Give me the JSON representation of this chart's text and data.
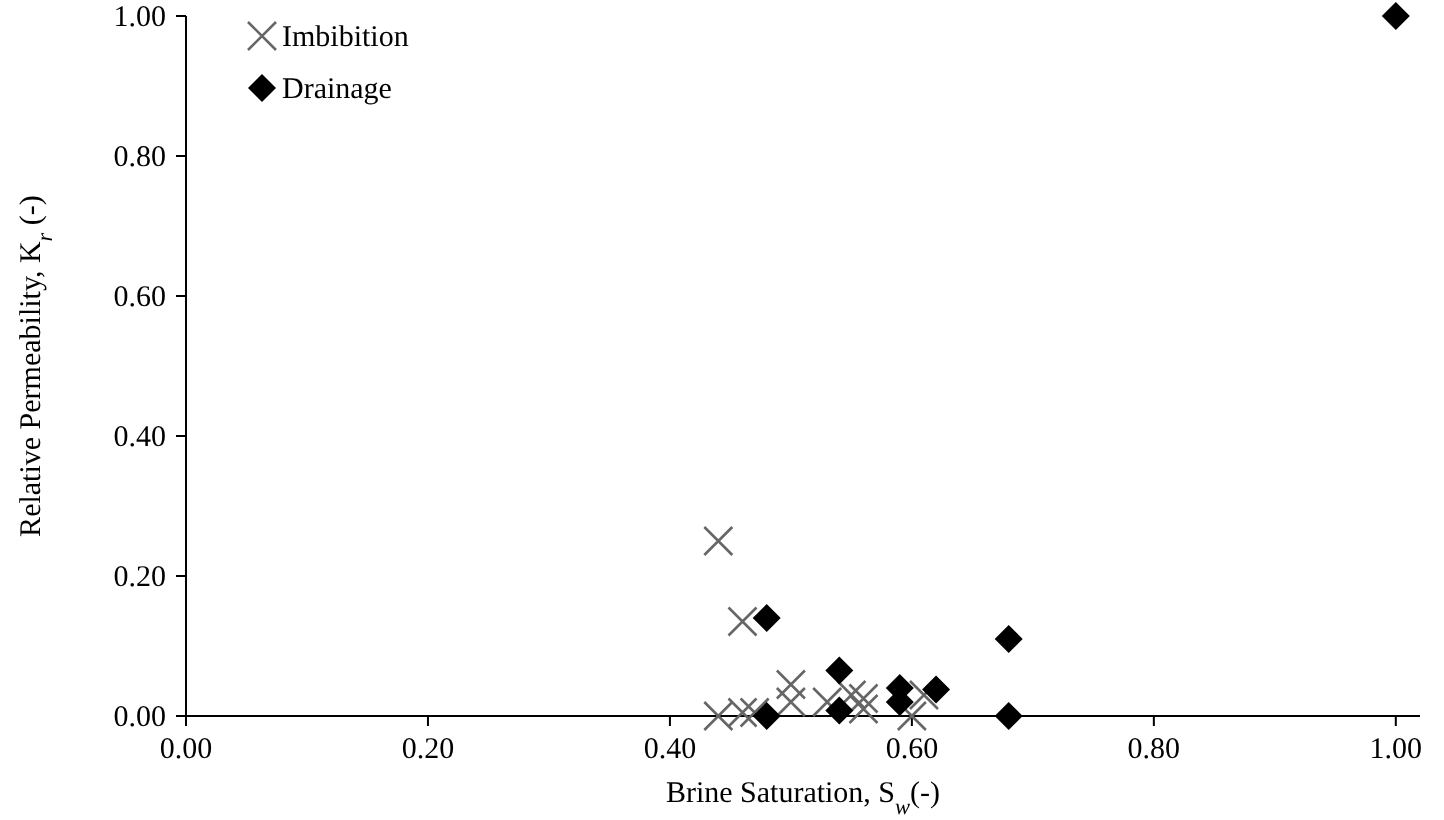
{
  "chart_data": {
    "type": "scatter",
    "xlabel": "Brine Saturation, S$_{w}$(-)",
    "ylabel": "Relative Permeability, K$_{r}$ (-)",
    "xlim": [
      0,
      1.02
    ],
    "ylim": [
      0,
      1
    ],
    "xticks": [
      {
        "value": 0,
        "label": "0.00"
      },
      {
        "value": 0.2,
        "label": "0.20"
      },
      {
        "value": 0.4,
        "label": "0.40"
      },
      {
        "value": 0.6,
        "label": "0.60"
      },
      {
        "value": 0.8,
        "label": "0.80"
      },
      {
        "value": 1,
        "label": "1.00"
      }
    ],
    "yticks": [
      {
        "value": 0,
        "label": "0.00"
      },
      {
        "value": 0.2,
        "label": "0.20"
      },
      {
        "value": 0.4,
        "label": "0.40"
      },
      {
        "value": 0.6,
        "label": "0.60"
      },
      {
        "value": 0.8,
        "label": "0.80"
      },
      {
        "value": 1,
        "label": "1.00"
      }
    ],
    "grid": false,
    "legend": "top left",
    "series": [
      {
        "name": "Imbibition",
        "color": "#666666",
        "marker": "cross",
        "x": [
          0.44,
          0.46,
          0.44,
          0.46,
          0.47,
          0.5,
          0.5,
          0.53,
          0.55,
          0.56,
          0.56,
          0.6,
          0.61
        ],
        "values": [
          0.25,
          0.135,
          0.0,
          0.005,
          0.005,
          0.045,
          0.02,
          0.02,
          0.03,
          0.025,
          0.01,
          0.0,
          0.03
        ]
      },
      {
        "name": "Drainage",
        "color": "#000000",
        "marker": "diamond",
        "x": [
          0.48,
          0.48,
          0.54,
          0.54,
          0.59,
          0.59,
          0.62,
          0.68,
          0.68,
          1.0
        ],
        "values": [
          0.14,
          0.0,
          0.065,
          0.008,
          0.04,
          0.02,
          0.038,
          0.11,
          0.0,
          1.0
        ]
      }
    ]
  }
}
